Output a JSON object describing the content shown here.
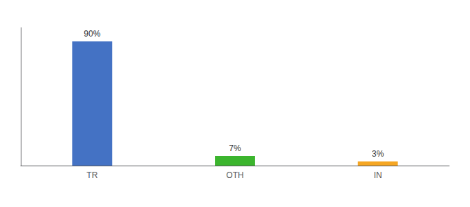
{
  "chart_data": {
    "type": "bar",
    "categories": [
      "TR",
      "OTH",
      "IN"
    ],
    "values": [
      90,
      7,
      3
    ],
    "value_labels": [
      "90%",
      "7%",
      "3%"
    ],
    "colors": [
      "#4472c4",
      "#3cb52e",
      "#f5a623"
    ],
    "ylim": [
      0,
      100
    ],
    "data_labels": true,
    "tick_labels": "x",
    "grid": false
  }
}
